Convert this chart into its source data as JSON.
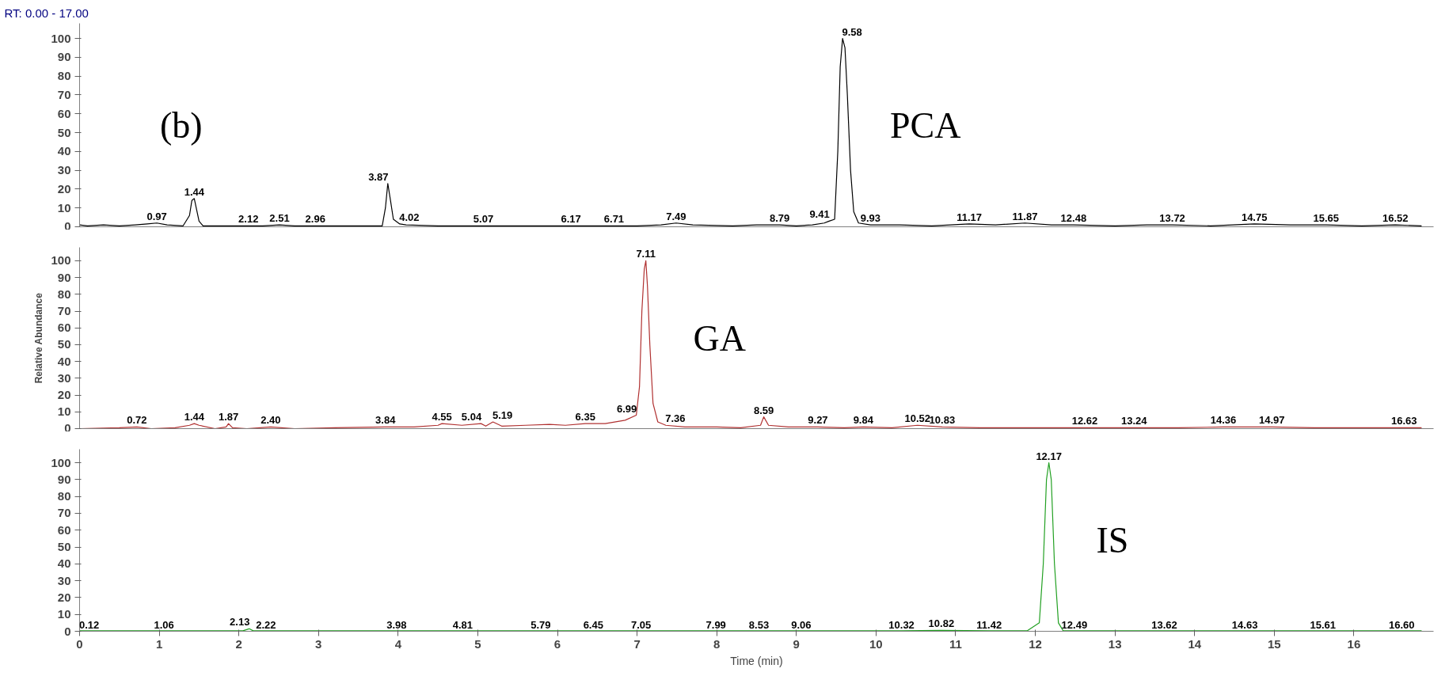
{
  "chart_data": [
    {
      "type": "line",
      "title": "RT: 0.00 - 17.00",
      "xlim": [
        0,
        17
      ],
      "ylim": [
        0,
        108
      ],
      "yticks": [
        0,
        10,
        20,
        30,
        40,
        50,
        60,
        70,
        80,
        90,
        100
      ],
      "tick_labels": "y",
      "series": [
        {
          "color": "#000000",
          "x": [
            0,
            0.1,
            0.3,
            0.5,
            0.7,
            0.85,
            0.97,
            1.1,
            1.3,
            1.38,
            1.41,
            1.44,
            1.47,
            1.5,
            1.55,
            1.8,
            2.12,
            2.3,
            2.51,
            2.7,
            2.96,
            3.3,
            3.6,
            3.8,
            3.84,
            3.87,
            3.9,
            3.94,
            4.02,
            4.1,
            4.5,
            5.07,
            5.6,
            6.17,
            6.4,
            6.71,
            7.0,
            7.3,
            7.49,
            7.7,
            8.2,
            8.5,
            8.79,
            9.0,
            9.2,
            9.35,
            9.41,
            9.48,
            9.52,
            9.55,
            9.58,
            9.61,
            9.64,
            9.68,
            9.72,
            9.78,
            9.93,
            10.3,
            10.7,
            11.17,
            11.5,
            11.87,
            12.2,
            12.48,
            13.0,
            13.4,
            13.72,
            14.2,
            14.75,
            15.2,
            15.65,
            16.1,
            16.52,
            16.85
          ],
          "values": [
            1,
            0.5,
            1,
            0.5,
            1,
            1.5,
            2,
            1,
            0.5,
            6,
            14,
            15,
            9,
            3,
            0.5,
            0.5,
            0.5,
            0.5,
            1,
            0.5,
            0.5,
            0.5,
            0.5,
            0.5,
            10,
            23,
            15,
            4,
            1.5,
            1,
            0.5,
            0.5,
            0.5,
            0.5,
            0.5,
            0.5,
            0.5,
            1,
            2,
            1,
            0.5,
            1,
            1,
            0.5,
            1,
            2,
            3,
            4,
            40,
            85,
            100,
            95,
            70,
            30,
            8,
            2,
            1,
            1,
            0.5,
            1.5,
            1,
            2,
            1,
            1,
            0.5,
            1,
            1,
            0.5,
            1.5,
            1,
            1,
            0.5,
            1,
            0.5
          ]
        }
      ],
      "annotations": [
        "(b)",
        {
          "text": "0.97",
          "x": 0.97,
          "y": 2
        },
        {
          "text": "1.44",
          "x": 1.44,
          "y": 15
        },
        {
          "text": "2.12",
          "x": 2.12,
          "y": 0.5
        },
        {
          "text": "2.51",
          "x": 2.51,
          "y": 1
        },
        {
          "text": "2.96",
          "x": 2.96,
          "y": 0.5
        },
        {
          "text": "3.87",
          "x": 3.87,
          "y": 23
        },
        {
          "text": "4.02",
          "x": 4.02,
          "y": 1.5
        },
        {
          "text": "5.07",
          "x": 5.07,
          "y": 0.5
        },
        {
          "text": "6.17",
          "x": 6.17,
          "y": 0.5
        },
        {
          "text": "6.71",
          "x": 6.71,
          "y": 0.5
        },
        {
          "text": "7.49",
          "x": 7.49,
          "y": 2
        },
        {
          "text": "8.79",
          "x": 8.79,
          "y": 1
        },
        {
          "text": "9.41",
          "x": 9.41,
          "y": 3
        },
        {
          "text": "9.58",
          "x": 9.58,
          "y": 100
        },
        {
          "text": "9.93",
          "x": 9.93,
          "y": 1
        },
        {
          "text": "11.17",
          "x": 11.17,
          "y": 1.5
        },
        {
          "text": "11.87",
          "x": 11.87,
          "y": 2
        },
        {
          "text": "12.48",
          "x": 12.48,
          "y": 1
        },
        {
          "text": "13.72",
          "x": 13.72,
          "y": 1
        },
        {
          "text": "14.75",
          "x": 14.75,
          "y": 1.5
        },
        {
          "text": "15.65",
          "x": 15.65,
          "y": 1
        },
        {
          "text": "16.52",
          "x": 16.52,
          "y": 1
        },
        "PCA"
      ]
    },
    {
      "type": "line",
      "ylabel": "Relative Abundance",
      "xlim": [
        0,
        17
      ],
      "ylim": [
        0,
        108
      ],
      "yticks": [
        0,
        10,
        20,
        30,
        40,
        50,
        60,
        70,
        80,
        90,
        100
      ],
      "tick_labels": "y",
      "series": [
        {
          "color": "#b03030",
          "x": [
            0,
            0.5,
            0.72,
            0.9,
            1.2,
            1.38,
            1.44,
            1.5,
            1.7,
            1.84,
            1.87,
            1.92,
            2.1,
            2.4,
            2.7,
            3.2,
            3.84,
            4.2,
            4.5,
            4.55,
            4.8,
            5.04,
            5.1,
            5.19,
            5.3,
            5.6,
            5.9,
            6.1,
            6.35,
            6.6,
            6.85,
            6.99,
            7.03,
            7.06,
            7.09,
            7.11,
            7.13,
            7.16,
            7.2,
            7.26,
            7.36,
            7.6,
            8.0,
            8.3,
            8.55,
            8.59,
            8.65,
            8.9,
            9.27,
            9.6,
            9.84,
            10.2,
            10.52,
            10.83,
            11.3,
            12.0,
            12.62,
            13.24,
            13.8,
            14.36,
            14.97,
            15.5,
            16.1,
            16.63,
            16.85
          ],
          "values": [
            0,
            0.5,
            1,
            0,
            0.5,
            2,
            3,
            2,
            0,
            1,
            3,
            0.5,
            0,
            1,
            0,
            0.5,
            1,
            1,
            2,
            3,
            2,
            3,
            1.5,
            4,
            1.5,
            2,
            2.5,
            2,
            3,
            3,
            5,
            8,
            25,
            70,
            95,
            100,
            85,
            50,
            15,
            4,
            2,
            1,
            1,
            0.5,
            2,
            7,
            2,
            1,
            1,
            0.5,
            1,
            0.5,
            2,
            1,
            0.5,
            0.5,
            0.5,
            0.5,
            0.5,
            1,
            1,
            0.5,
            0.5,
            0.5,
            0.5
          ]
        }
      ],
      "annotations": [
        {
          "text": "0.72",
          "x": 0.72,
          "y": 1
        },
        {
          "text": "1.44",
          "x": 1.44,
          "y": 3
        },
        {
          "text": "1.87",
          "x": 1.87,
          "y": 3
        },
        {
          "text": "2.40",
          "x": 2.4,
          "y": 1
        },
        {
          "text": "3.84",
          "x": 3.84,
          "y": 1
        },
        {
          "text": "4.55",
          "x": 4.55,
          "y": 3
        },
        {
          "text": "5.04",
          "x": 5.04,
          "y": 3
        },
        {
          "text": "5.19",
          "x": 5.19,
          "y": 4
        },
        {
          "text": "6.35",
          "x": 6.35,
          "y": 3
        },
        {
          "text": "6.99",
          "x": 6.99,
          "y": 8
        },
        {
          "text": "7.11",
          "x": 7.11,
          "y": 100
        },
        {
          "text": "7.36",
          "x": 7.36,
          "y": 2
        },
        {
          "text": "8.59",
          "x": 8.59,
          "y": 7
        },
        {
          "text": "9.27",
          "x": 9.27,
          "y": 1
        },
        {
          "text": "9.84",
          "x": 9.84,
          "y": 1
        },
        {
          "text": "10.52",
          "x": 10.52,
          "y": 2
        },
        {
          "text": "10.83",
          "x": 10.83,
          "y": 1
        },
        {
          "text": "12.62",
          "x": 12.62,
          "y": 0.5
        },
        {
          "text": "13.24",
          "x": 13.24,
          "y": 0.5
        },
        {
          "text": "14.36",
          "x": 14.36,
          "y": 1
        },
        {
          "text": "14.97",
          "x": 14.97,
          "y": 1
        },
        {
          "text": "16.63",
          "x": 16.63,
          "y": 0.5
        },
        "GA"
      ]
    },
    {
      "type": "line",
      "xlabel": "Time (min)",
      "xlim": [
        0,
        17
      ],
      "ylim": [
        0,
        108
      ],
      "xticks": [
        0,
        1,
        2,
        3,
        4,
        5,
        6,
        7,
        8,
        9,
        10,
        11,
        12,
        13,
        14,
        15,
        16
      ],
      "yticks": [
        0,
        10,
        20,
        30,
        40,
        50,
        60,
        70,
        80,
        90,
        100
      ],
      "series": [
        {
          "color": "#22a022",
          "x": [
            0,
            0.12,
            0.5,
            1.06,
            1.6,
            2.05,
            2.13,
            2.18,
            2.22,
            3.0,
            3.98,
            4.81,
            5.79,
            6.45,
            7.05,
            7.99,
            8.53,
            9.06,
            10.32,
            10.82,
            11.42,
            11.9,
            12.05,
            12.1,
            12.14,
            12.17,
            12.2,
            12.24,
            12.29,
            12.35,
            12.49,
            13.62,
            14.63,
            15.61,
            16.6,
            16.85
          ],
          "values": [
            0.3,
            0.3,
            0.3,
            0.3,
            0.3,
            0.3,
            1.5,
            0.3,
            0.3,
            0.3,
            0.3,
            0.3,
            0.3,
            0.3,
            0.3,
            0.3,
            0.3,
            0.3,
            0.3,
            0.5,
            0.3,
            0.3,
            5,
            40,
            90,
            100,
            90,
            40,
            5,
            0.3,
            0.3,
            0.3,
            0.3,
            0.3,
            0.3,
            0.3
          ]
        }
      ],
      "annotations": [
        {
          "text": "0.12",
          "x": 0.12,
          "y": 0
        },
        {
          "text": "1.06",
          "x": 1.06,
          "y": 0
        },
        {
          "text": "2.13",
          "x": 2.13,
          "y": 1.5
        },
        {
          "text": "2.22",
          "x": 2.22,
          "y": 0
        },
        {
          "text": "3.98",
          "x": 3.98,
          "y": 0
        },
        {
          "text": "4.81",
          "x": 4.81,
          "y": 0
        },
        {
          "text": "5.79",
          "x": 5.79,
          "y": 0
        },
        {
          "text": "6.45",
          "x": 6.45,
          "y": 0
        },
        {
          "text": "7.05",
          "x": 7.05,
          "y": 0
        },
        {
          "text": "7.99",
          "x": 7.99,
          "y": 0
        },
        {
          "text": "8.53",
          "x": 8.53,
          "y": 0
        },
        {
          "text": "9.06",
          "x": 9.06,
          "y": 0
        },
        {
          "text": "10.32",
          "x": 10.32,
          "y": 0
        },
        {
          "text": "10.82",
          "x": 10.82,
          "y": 0.5
        },
        {
          "text": "11.42",
          "x": 11.42,
          "y": 0
        },
        {
          "text": "12.17",
          "x": 12.17,
          "y": 100
        },
        {
          "text": "12.49",
          "x": 12.49,
          "y": 0
        },
        {
          "text": "13.62",
          "x": 13.62,
          "y": 0
        },
        {
          "text": "14.63",
          "x": 14.63,
          "y": 0
        },
        {
          "text": "15.61",
          "x": 15.61,
          "y": 0
        },
        {
          "text": "16.60",
          "x": 16.6,
          "y": 0
        },
        "IS"
      ]
    }
  ]
}
